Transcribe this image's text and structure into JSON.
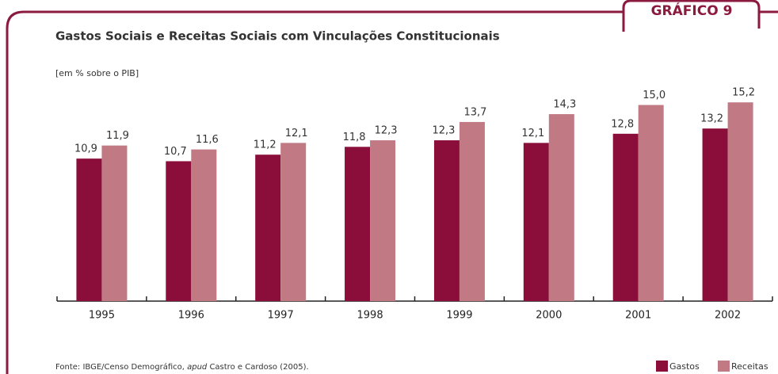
{
  "badge": "GRÁFICO 9",
  "chart_data": {
    "type": "bar",
    "title": "Gastos Sociais e Receitas Sociais com Vinculações Constitucionais",
    "subtitle": "[em % sobre o PIB]",
    "categories": [
      "1995",
      "1996",
      "1997",
      "1998",
      "1999",
      "2000",
      "2001",
      "2002"
    ],
    "series": [
      {
        "name": "Gastos",
        "color": "#8b0e3a",
        "values": [
          10.9,
          10.7,
          11.2,
          11.8,
          12.3,
          12.1,
          12.8,
          13.2
        ],
        "value_labels": [
          "10,9",
          "10,7",
          "11,2",
          "11,8",
          "12,3",
          "12,1",
          "12,8",
          "13,2"
        ]
      },
      {
        "name": "Receitas",
        "color": "#c17a84",
        "values": [
          11.9,
          11.6,
          12.1,
          12.3,
          13.7,
          14.3,
          15.0,
          15.2
        ],
        "value_labels": [
          "11,9",
          "11,6",
          "12,1",
          "12,3",
          "13,7",
          "14,3",
          "15,0",
          "15,2"
        ]
      }
    ],
    "ylim": [
      0,
      16
    ],
    "legend": "bottom-right",
    "source": [
      "Fonte: IBGE/Censo Demográfico, ",
      "apud",
      " Castro e Cardoso (2005)."
    ]
  }
}
